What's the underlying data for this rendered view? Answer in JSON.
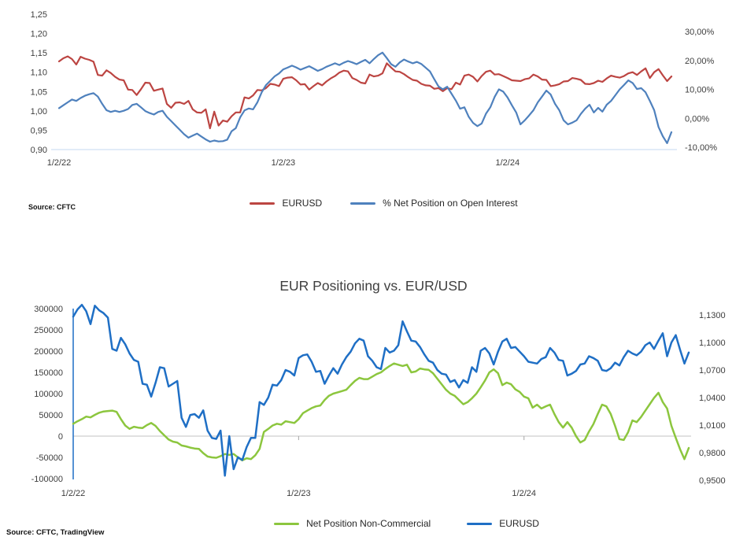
{
  "page": {
    "background": "#ffffff"
  },
  "chart_data": [
    {
      "id": "top",
      "type": "line",
      "title": "",
      "x_tick_labels": [
        "1/2/22",
        "1/2/23",
        "1/2/24"
      ],
      "x_tick_weeks": [
        0,
        52,
        104
      ],
      "x_total_weeks": 142,
      "grid": "off",
      "legend_position": "bottom",
      "left_axis": {
        "min": 0.9,
        "max": 1.25,
        "tick_labels": [
          "1,25",
          "1,20",
          "1,15",
          "1,10",
          "1,05",
          "1,00",
          "0,95",
          "0,90"
        ]
      },
      "right_axis": {
        "min": -10,
        "max": 30,
        "tick_labels": [
          "30,00%",
          "20,00%",
          "10,00%",
          "0,00%",
          "-10,00%"
        ]
      },
      "series": [
        {
          "name": "EURUSD",
          "axis": "left",
          "color": "#bc4542",
          "values": [
            1.128,
            1.136,
            1.141,
            1.134,
            1.12,
            1.14,
            1.135,
            1.132,
            1.127,
            1.093,
            1.091,
            1.105,
            1.098,
            1.088,
            1.081,
            1.079,
            1.055,
            1.054,
            1.041,
            1.056,
            1.073,
            1.072,
            1.052,
            1.055,
            1.058,
            1.018,
            1.008,
            1.021,
            1.022,
            1.018,
            1.026,
            1.004,
            0.996,
            0.995,
            1.004,
            0.955,
            0.998,
            0.962,
            0.975,
            0.972,
            0.986,
            0.996,
            0.996,
            1.035,
            1.032,
            1.04,
            1.054,
            1.053,
            1.059,
            1.07,
            1.068,
            1.064,
            1.083,
            1.086,
            1.087,
            1.079,
            1.068,
            1.069,
            1.055,
            1.064,
            1.072,
            1.066,
            1.076,
            1.084,
            1.09,
            1.099,
            1.104,
            1.102,
            1.085,
            1.08,
            1.073,
            1.071,
            1.094,
            1.089,
            1.091,
            1.097,
            1.123,
            1.112,
            1.102,
            1.101,
            1.095,
            1.087,
            1.08,
            1.078,
            1.07,
            1.066,
            1.065,
            1.057,
            1.059,
            1.051,
            1.059,
            1.056,
            1.073,
            1.068,
            1.091,
            1.094,
            1.088,
            1.076,
            1.09,
            1.101,
            1.104,
            1.094,
            1.095,
            1.09,
            1.085,
            1.079,
            1.078,
            1.077,
            1.082,
            1.084,
            1.094,
            1.089,
            1.081,
            1.08,
            1.064,
            1.066,
            1.069,
            1.076,
            1.077,
            1.085,
            1.083,
            1.08,
            1.07,
            1.069,
            1.072,
            1.078,
            1.075,
            1.084,
            1.091,
            1.088,
            1.086,
            1.09,
            1.097,
            1.1,
            1.093,
            1.102,
            1.11,
            1.085,
            1.1,
            1.108,
            1.092,
            1.077,
            1.089
          ]
        },
        {
          "name": "% Net Position on Open Interest",
          "axis": "right",
          "color": "#4f81bd",
          "values": [
            3.5,
            4.5,
            5.5,
            6.5,
            6.0,
            7.0,
            7.8,
            8.3,
            8.7,
            7.5,
            5.0,
            2.8,
            2.2,
            2.6,
            2.2,
            2.6,
            3.2,
            4.6,
            5.0,
            3.8,
            2.5,
            1.8,
            1.3,
            2.2,
            2.6,
            0.5,
            -1.0,
            -2.5,
            -4.0,
            -5.5,
            -6.7,
            -6.0,
            -5.3,
            -6.3,
            -7.3,
            -8.1,
            -7.7,
            -8.0,
            -7.9,
            -7.4,
            -4.5,
            -3.4,
            0.3,
            2.7,
            3.4,
            3.1,
            5.5,
            9.0,
            11.5,
            13.0,
            14.5,
            15.5,
            16.9,
            17.5,
            18.2,
            17.6,
            16.8,
            17.4,
            18.0,
            17.2,
            16.4,
            17.0,
            17.8,
            18.4,
            19.0,
            18.4,
            19.2,
            19.8,
            19.3,
            18.7,
            19.5,
            20.2,
            19.0,
            20.5,
            21.8,
            22.7,
            20.8,
            18.7,
            17.8,
            19.3,
            20.3,
            19.6,
            19.0,
            19.5,
            18.8,
            17.5,
            16.2,
            13.5,
            11.0,
            10.0,
            10.9,
            8.5,
            6.1,
            3.3,
            3.8,
            0.5,
            -1.6,
            -2.7,
            -1.8,
            1.6,
            3.8,
            7.4,
            10.0,
            9.2,
            7.2,
            4.5,
            2.0,
            -2.1,
            -0.7,
            1.0,
            2.8,
            5.5,
            7.5,
            9.6,
            8.2,
            5.0,
            2.8,
            -0.7,
            -2.1,
            -1.5,
            -0.7,
            1.5,
            3.3,
            4.7,
            2.0,
            3.6,
            2.3,
            4.7,
            6.0,
            8.0,
            10.0,
            11.5,
            13.1,
            12.2,
            10.1,
            10.4,
            9.0,
            6.0,
            2.8,
            -3.0,
            -6.2,
            -8.6,
            -4.8
          ]
        }
      ],
      "legend": [
        {
          "label": "EURUSD",
          "color": "#bc4542"
        },
        {
          "label": "% Net Position on Open Interest",
          "color": "#4f81bd"
        }
      ],
      "source": "Source: CFTC"
    },
    {
      "id": "bottom",
      "type": "line",
      "title": "EUR Positioning vs. EUR/USD",
      "x_tick_labels": [
        "1/2/22",
        "1/2/23",
        "1/2/24"
      ],
      "x_tick_weeks": [
        0,
        52,
        104
      ],
      "x_total_weeks": 142,
      "grid": "off",
      "legend_position": "bottom",
      "left_axis": {
        "min": -100000,
        "max": 300000,
        "tick_labels": [
          "300000",
          "250000",
          "200000",
          "150000",
          "100000",
          "50000",
          "0",
          "-50000",
          "-100000"
        ]
      },
      "right_axis": {
        "min": 0.95,
        "max": 1.13,
        "tick_labels": [
          "1,1300",
          "1,1000",
          "1,0700",
          "1,0400",
          "1,0100",
          "0,9800",
          "0,9500"
        ]
      },
      "series": [
        {
          "name": "Net Position Non-Commercial",
          "axis": "left",
          "color": "#8cc63e",
          "values": [
            29000,
            35000,
            40000,
            46000,
            44000,
            50000,
            55000,
            58000,
            59000,
            60000,
            57000,
            40000,
            25000,
            17000,
            22000,
            20000,
            19000,
            26000,
            31000,
            24000,
            12000,
            2000,
            -8000,
            -13000,
            -15000,
            -22000,
            -24000,
            -27000,
            -29000,
            -30000,
            -40000,
            -48000,
            -50000,
            -51000,
            -47000,
            -42000,
            -44000,
            -42000,
            -50000,
            -57000,
            -52000,
            -54000,
            -45000,
            -30000,
            10000,
            17000,
            25000,
            29000,
            27000,
            35000,
            33000,
            31000,
            40000,
            54000,
            60000,
            66000,
            70000,
            72000,
            85000,
            95000,
            100000,
            103000,
            106000,
            109000,
            120000,
            130000,
            137000,
            134000,
            134000,
            140000,
            146000,
            150000,
            158000,
            165000,
            171000,
            168000,
            165000,
            168000,
            150000,
            152000,
            159000,
            157000,
            156000,
            148000,
            135000,
            122000,
            109000,
            100000,
            95000,
            85000,
            75000,
            80000,
            89000,
            100000,
            115000,
            131000,
            150000,
            157000,
            148000,
            120000,
            126000,
            122000,
            110000,
            104000,
            93000,
            89000,
            67000,
            74000,
            65000,
            70000,
            74000,
            52000,
            33000,
            20000,
            33000,
            20000,
            0,
            -15000,
            -9000,
            11000,
            28000,
            52000,
            74000,
            70000,
            52000,
            24000,
            -7000,
            -9000,
            9000,
            37000,
            33000,
            45000,
            60000,
            75000,
            90000,
            102000,
            80000,
            65000,
            24000,
            -4000,
            -31000,
            -54000,
            -28000
          ]
        },
        {
          "name": "EURUSD",
          "axis": "right",
          "color": "#1f6fc5",
          "values": [
            1.128,
            1.136,
            1.141,
            1.134,
            1.12,
            1.14,
            1.135,
            1.132,
            1.127,
            1.093,
            1.091,
            1.105,
            1.098,
            1.088,
            1.081,
            1.079,
            1.055,
            1.054,
            1.041,
            1.056,
            1.073,
            1.072,
            1.052,
            1.055,
            1.058,
            1.018,
            1.008,
            1.021,
            1.022,
            1.018,
            1.026,
            1.004,
            0.996,
            0.995,
            1.004,
            0.955,
            0.998,
            0.962,
            0.975,
            0.972,
            0.986,
            0.996,
            0.996,
            1.035,
            1.032,
            1.04,
            1.054,
            1.053,
            1.059,
            1.07,
            1.068,
            1.064,
            1.083,
            1.086,
            1.087,
            1.079,
            1.068,
            1.069,
            1.055,
            1.064,
            1.072,
            1.066,
            1.076,
            1.084,
            1.09,
            1.099,
            1.104,
            1.102,
            1.085,
            1.08,
            1.073,
            1.071,
            1.094,
            1.089,
            1.091,
            1.097,
            1.123,
            1.112,
            1.102,
            1.101,
            1.095,
            1.087,
            1.08,
            1.078,
            1.07,
            1.066,
            1.065,
            1.057,
            1.059,
            1.051,
            1.059,
            1.056,
            1.073,
            1.068,
            1.091,
            1.094,
            1.088,
            1.076,
            1.09,
            1.101,
            1.104,
            1.094,
            1.095,
            1.09,
            1.085,
            1.079,
            1.078,
            1.077,
            1.082,
            1.084,
            1.094,
            1.089,
            1.081,
            1.08,
            1.064,
            1.066,
            1.069,
            1.076,
            1.077,
            1.085,
            1.083,
            1.08,
            1.07,
            1.069,
            1.072,
            1.078,
            1.075,
            1.084,
            1.091,
            1.088,
            1.086,
            1.09,
            1.097,
            1.1,
            1.093,
            1.102,
            1.11,
            1.085,
            1.1,
            1.108,
            1.092,
            1.077,
            1.089
          ]
        }
      ],
      "legend": [
        {
          "label": "Net Position Non-Commercial",
          "color": "#8cc63e"
        },
        {
          "label": "EURUSD",
          "color": "#1f6fc5"
        }
      ],
      "source": "Source: CFTC, TradingView"
    }
  ]
}
